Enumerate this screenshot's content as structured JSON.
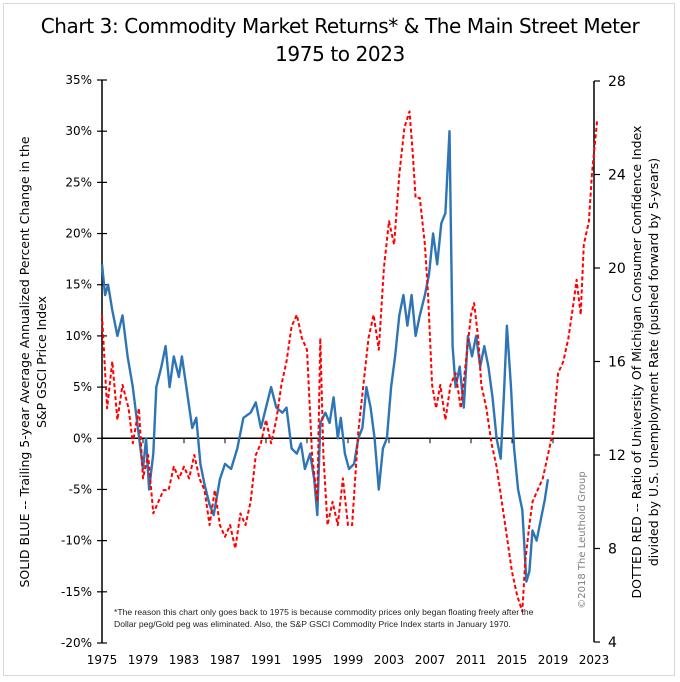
{
  "chart_data": {
    "type": "line",
    "title": "Chart 3: Commodity Market Returns* & The Main Street Meter",
    "subtitle": "1975 to 2023",
    "xlabel": "",
    "ylabel": "SOLID BLUE -- Trailing 5-year Average Annualized Percent Change in the S&P GSCI Price Index",
    "ylabel_right": "DOTTED RED -- Ratio of University Of Michigan Consumer Confidence Index divided by U.S. Unemployment Rate (pushed forward by 5-years)",
    "ylabel_lines": [
      "SOLID BLUE -- Trailing 5-year Average Annualized Percent Change in the",
      "S&P GSCI Price Index"
    ],
    "ylabel_right_lines": [
      "DOTTED RED -- Ratio of University Of Michigan Consumer Confidence Index",
      "divided by U.S. Unemployment Rate (pushed forward by 5-years)"
    ],
    "xlim": [
      1975,
      2023
    ],
    "ylim": [
      -20,
      35
    ],
    "ylim_right": [
      4,
      28
    ],
    "x_ticks": [
      "1975",
      "1979",
      "1983",
      "1987",
      "1991",
      "1995",
      "1999",
      "2003",
      "2007",
      "2011",
      "2015",
      "2019",
      "2023"
    ],
    "y_ticks": [
      "-20%",
      "-15%",
      "-10%",
      "-5%",
      "0%",
      "5%",
      "10%",
      "15%",
      "20%",
      "25%",
      "30%",
      "35%"
    ],
    "y_ticks_right": [
      "4",
      "8",
      "12",
      "16",
      "20",
      "24",
      "28"
    ],
    "grid": false,
    "footnote_lines": [
      "*The reason this chart only goes back to 1975 is because commodity prices only began floating freely after the",
      "Dollar peg/Gold peg was eliminated. Also, the S&P GSCI Commodity Price Index starts in January 1970."
    ],
    "credit": "©2018 The Leuthold Group",
    "series": [
      {
        "name": "S&P GSCI Trailing 5-yr Avg Annualized % Change",
        "axis": "left",
        "style": "solid",
        "color": "#2e75b6",
        "x": [
          1975,
          1975.3,
          1975.6,
          1976,
          1976.5,
          1977,
          1977.5,
          1978,
          1978.5,
          1979,
          1979.3,
          1979.6,
          1980,
          1980.3,
          1980.8,
          1981.2,
          1981.6,
          1982,
          1982.5,
          1982.8,
          1983.3,
          1983.8,
          1984.2,
          1984.6,
          1985,
          1985.5,
          1985.9,
          1986.5,
          1987,
          1987.6,
          1988.2,
          1988.8,
          1989.5,
          1990,
          1990.5,
          1991,
          1991.5,
          1992,
          1992.6,
          1993,
          1993.5,
          1994,
          1994.4,
          1994.8,
          1995.3,
          1995.7,
          1996,
          1996.3,
          1996.8,
          1997.2,
          1997.6,
          1998,
          1998.3,
          1998.7,
          1999.1,
          1999.6,
          2000,
          2000.4,
          2000.8,
          2001.2,
          2001.6,
          2002,
          2002.4,
          2002.8,
          2003.2,
          2003.6,
          2004,
          2004.4,
          2004.8,
          2005.2,
          2005.6,
          2006,
          2006.5,
          2006.9,
          2007.3,
          2007.7,
          2008.1,
          2008.5,
          2008.9,
          2009.2,
          2009.5,
          2009.9,
          2010.3,
          2010.7,
          2011.1,
          2011.5,
          2011.9,
          2012.3,
          2012.7,
          2013.1,
          2013.5,
          2013.9,
          2014.2,
          2014.5,
          2014.9,
          2015.2,
          2015.6,
          2016,
          2016.4,
          2016.7,
          2017,
          2017.4,
          2017.8,
          2018.2,
          2018.5
        ],
        "values": [
          17,
          14,
          15,
          12.5,
          10,
          12,
          8,
          5,
          1,
          -3,
          0,
          -5,
          -1.5,
          5,
          7,
          9,
          5,
          8,
          6,
          8,
          4.5,
          1,
          2,
          -2.5,
          -4.5,
          -6.5,
          -7.5,
          -4,
          -2.5,
          -3,
          -1,
          2,
          2.5,
          3.5,
          1,
          3,
          5,
          3,
          2.5,
          3,
          -1,
          -1.5,
          -0.5,
          -3,
          -1.5,
          -4,
          -7.5,
          1.5,
          2.5,
          1.5,
          4,
          0,
          2,
          -1.5,
          -3,
          -2.5,
          0,
          1,
          5,
          3,
          0,
          -5,
          -1,
          0,
          5,
          8,
          12,
          14,
          11,
          14,
          10,
          12,
          14,
          16,
          20,
          17,
          21,
          22,
          30,
          9,
          5,
          7,
          3,
          10,
          8,
          10,
          7,
          9,
          7,
          4,
          0,
          -2,
          4,
          11,
          5,
          -1,
          -5,
          -7,
          -14,
          -13,
          -9,
          -10,
          -8,
          -6,
          -4
        ]
      },
      {
        "name": "Main Street Meter (UMich Sentiment / Unemployment, +5yr)",
        "axis": "right",
        "style": "dashed",
        "color": "#ff0000",
        "x": [
          1975,
          1975.5,
          1976,
          1976.5,
          1977,
          1977.6,
          1978,
          1978.6,
          1979,
          1979.5,
          1980,
          1980.5,
          1981,
          1981.5,
          1982,
          1982.5,
          1983,
          1983.5,
          1984,
          1984.5,
          1985,
          1985.5,
          1986,
          1986.5,
          1987,
          1987.5,
          1988,
          1988.5,
          1989,
          1989.5,
          1990,
          1990.5,
          1991,
          1991.5,
          1992,
          1992.5,
          1993,
          1993.5,
          1994,
          1994.5,
          1995,
          1995.5,
          1996,
          1996.3,
          1996.6,
          1997,
          1997.5,
          1998,
          1998.5,
          1999,
          1999.4,
          2000,
          2000.5,
          2001,
          2001.5,
          2002,
          2002.5,
          2003,
          2003.5,
          2004,
          2004.5,
          2005,
          2005.3,
          2005.6,
          2006,
          2006.5,
          2006.8,
          2007.2,
          2007.6,
          2008,
          2008.5,
          2009,
          2009.5,
          2010,
          2010.5,
          2011,
          2011.3,
          2011.7,
          2012,
          2012.5,
          2013,
          2013.5,
          2014,
          2014.5,
          2015,
          2015.5,
          2016,
          2016.3,
          2016.7,
          2017,
          2017.5,
          2018,
          2018.5,
          2019,
          2019.5,
          2020,
          2020.5,
          2021,
          2021.3,
          2021.7,
          2022,
          2022.5,
          2022.8,
          2023.3
        ],
        "values": [
          18,
          14,
          16,
          13.5,
          15,
          14,
          12.5,
          14,
          11,
          12,
          9.5,
          10,
          10.5,
          10.5,
          11.5,
          11,
          11.5,
          11,
          12,
          11,
          10.5,
          9,
          10.5,
          9,
          8.5,
          9,
          8,
          9.5,
          9,
          10,
          12,
          12.5,
          13.5,
          12.5,
          13.5,
          15,
          16,
          17.5,
          18,
          17,
          16.5,
          12,
          10,
          17,
          12,
          9,
          10,
          9,
          11,
          9,
          9,
          13,
          15,
          17,
          18,
          16.5,
          20,
          22,
          21,
          24,
          26,
          26.7,
          25,
          23,
          23,
          21,
          19,
          15,
          14,
          15,
          13.5,
          15,
          15.5,
          14,
          16,
          18,
          18.5,
          17,
          15,
          14,
          12.5,
          11.5,
          10,
          8.5,
          7,
          6,
          5.3,
          7.5,
          9,
          10,
          10.5,
          11,
          12,
          13,
          15.5,
          16,
          17,
          18.5,
          19.5,
          18,
          21,
          22,
          24,
          26.3
        ]
      }
    ]
  }
}
